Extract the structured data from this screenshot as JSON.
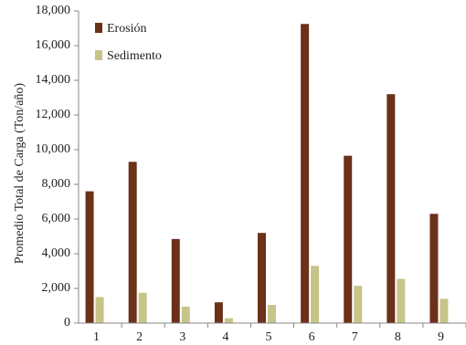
{
  "chart_data": {
    "type": "bar",
    "title": "",
    "xlabel": "",
    "ylabel": "Promedio Total de Carga (Ton/año)",
    "ylim": [
      0,
      18000
    ],
    "yticks": [
      "0",
      "2,000",
      "4,000",
      "6,000",
      "8,000",
      "10,000",
      "12,000",
      "14,000",
      "16,000",
      "18,000"
    ],
    "ytick_values": [
      0,
      2000,
      4000,
      6000,
      8000,
      10000,
      12000,
      14000,
      16000,
      18000
    ],
    "categories": [
      "1",
      "2",
      "3",
      "4",
      "5",
      "6",
      "7",
      "8",
      "9"
    ],
    "grid": false,
    "legend_position": "top-left",
    "series": [
      {
        "name": "Erosión",
        "color": "#6b3119",
        "values": [
          7600,
          9300,
          4850,
          1200,
          5200,
          17250,
          9650,
          13200,
          6300
        ]
      },
      {
        "name": "Sedimento",
        "color": "#c7c48a",
        "values": [
          1500,
          1750,
          950,
          280,
          1050,
          3300,
          2150,
          2550,
          1400
        ]
      }
    ]
  }
}
